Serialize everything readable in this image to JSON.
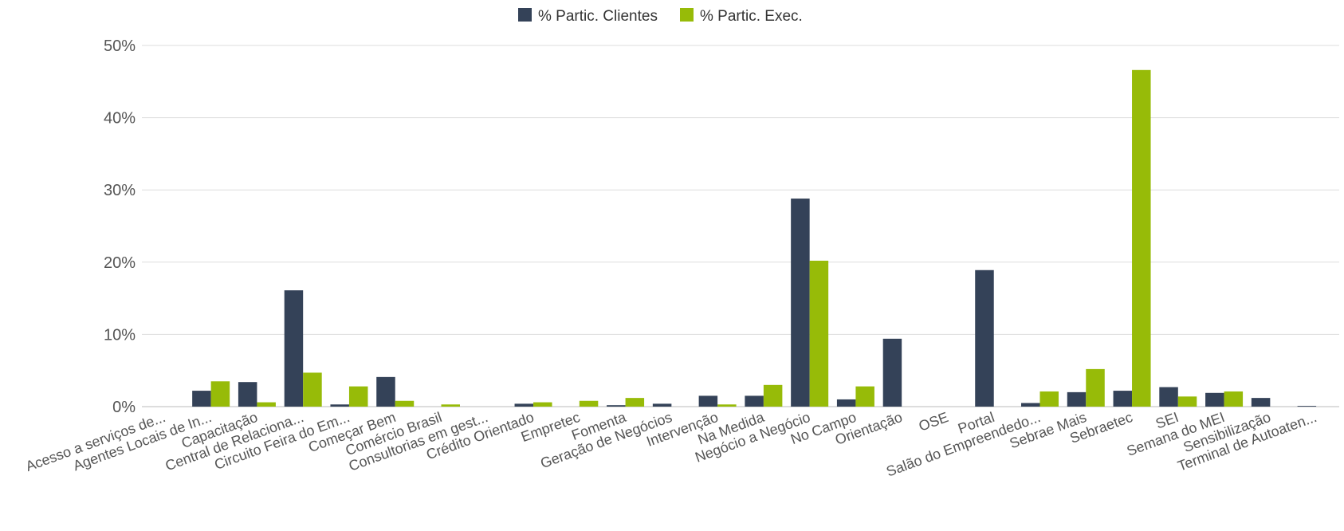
{
  "chart_data": {
    "type": "bar",
    "title": "",
    "xlabel": "",
    "ylabel": "",
    "ylim": [
      0,
      50
    ],
    "y_ticks": [
      "0%",
      "10%",
      "20%",
      "30%",
      "40%",
      "50%"
    ],
    "grid": true,
    "legend_position": "top-center",
    "categories": [
      "Acesso a serviços de...",
      "Agentes Locais de In...",
      "Capacitação",
      "Central de Relaciona...",
      "Circuito Feira do Em...",
      "Começar Bem",
      "Comércio Brasil",
      "Consultorias em gest...",
      "Crédito Orientado",
      "Empretec",
      "Fomenta",
      "Geração de Negócios",
      "Intervenção",
      "Na Medida",
      "Negócio a Negócio",
      "No Campo",
      "Orientação",
      "OSE",
      "Portal",
      "Salão do Empreendedo...",
      "Sebrae Mais",
      "Sebraetec",
      "SEI",
      "Semana do MEI",
      "Sensibilização",
      "Terminal de Autoaten..."
    ],
    "series": [
      {
        "name": "% Partic. Clientes",
        "color": "#344258",
        "values": [
          0,
          2.2,
          3.4,
          16.1,
          0.3,
          4.1,
          0,
          0,
          0.4,
          0,
          0.2,
          0.4,
          1.5,
          1.5,
          28.8,
          1.0,
          9.4,
          0,
          18.9,
          0.5,
          2.0,
          2.2,
          2.7,
          1.9,
          1.2,
          0.1
        ]
      },
      {
        "name": "% Partic. Exec.",
        "color": "#97bb08",
        "values": [
          0,
          3.5,
          0.6,
          4.7,
          2.8,
          0.8,
          0.3,
          0,
          0.6,
          0.8,
          1.2,
          0,
          0.3,
          3.0,
          20.2,
          2.8,
          0,
          0,
          0,
          2.1,
          5.2,
          46.6,
          1.4,
          2.1,
          0,
          0
        ]
      }
    ]
  }
}
